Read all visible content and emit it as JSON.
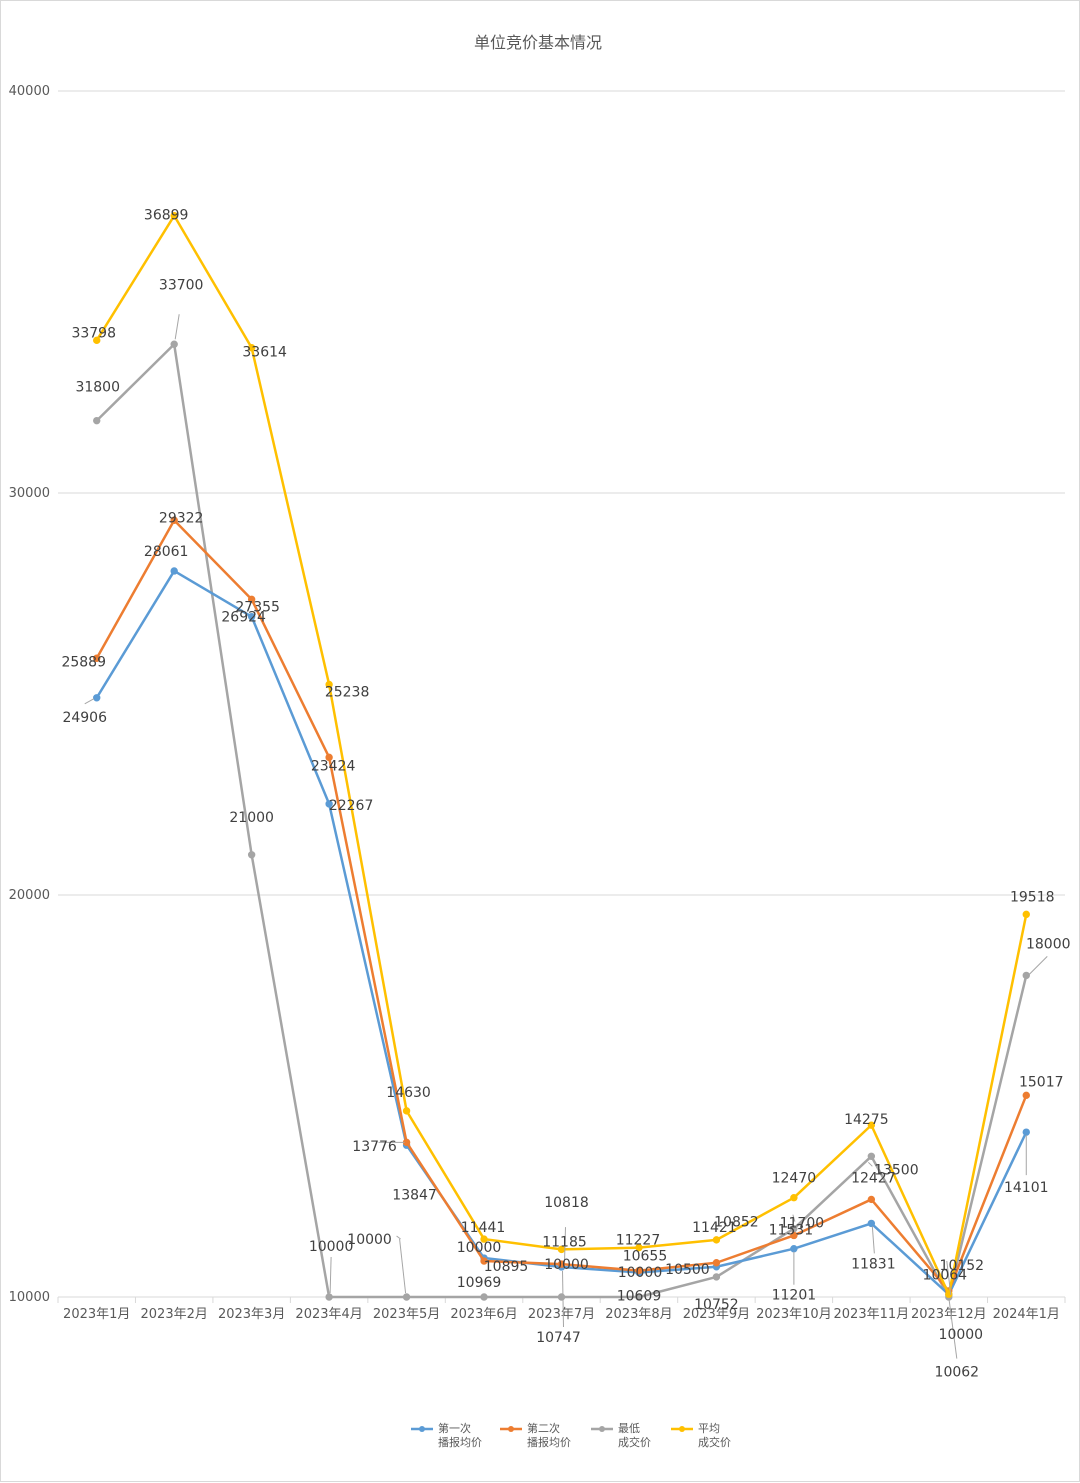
{
  "chart_data": {
    "type": "line",
    "title": "单位竞价基本情况",
    "xlabel": "",
    "ylabel": "",
    "ylim": [
      10000,
      40000
    ],
    "yticks": [
      10000,
      20000,
      30000,
      40000
    ],
    "grid": true,
    "legend_position": "bottom",
    "categories": [
      "2023年1月",
      "2023年2月",
      "2023年3月",
      "2023年4月",
      "2023年5月",
      "2023年6月",
      "2023年7月",
      "2023年8月",
      "2023年9月",
      "2023年10月",
      "2023年11月",
      "2023年12月",
      "2024年1月"
    ],
    "series": [
      {
        "name": "第一次播报均价",
        "legend_lines": [
          "第一次",
          "播报均价"
        ],
        "color": "#5b9bd5",
        "values": [
          24906,
          28061,
          26924,
          22267,
          13776,
          10969,
          10747,
          10609,
          10752,
          11201,
          11831,
          10062,
          14101
        ]
      },
      {
        "name": "第二次播报均价",
        "legend_lines": [
          "第二次",
          "播报均价"
        ],
        "color": "#ed7d31",
        "values": [
          25889,
          29322,
          27355,
          23424,
          13847,
          10895,
          10818,
          10655,
          10852,
          11531,
          12427,
          10152,
          15017
        ]
      },
      {
        "name": "最低成交价",
        "legend_lines": [
          "最低",
          "成交价"
        ],
        "color": "#a5a5a5",
        "values": [
          31800,
          33700,
          21000,
          10000,
          10000,
          10000,
          10000,
          10000,
          10500,
          11700,
          13500,
          10000,
          18000
        ]
      },
      {
        "name": "平均成交价",
        "legend_lines": [
          "平均",
          "成交价"
        ],
        "color": "#ffc000",
        "values": [
          33798,
          36899,
          33614,
          25238,
          14630,
          11441,
          11185,
          11227,
          11421,
          12470,
          14275,
          10064,
          19518
        ]
      }
    ]
  }
}
